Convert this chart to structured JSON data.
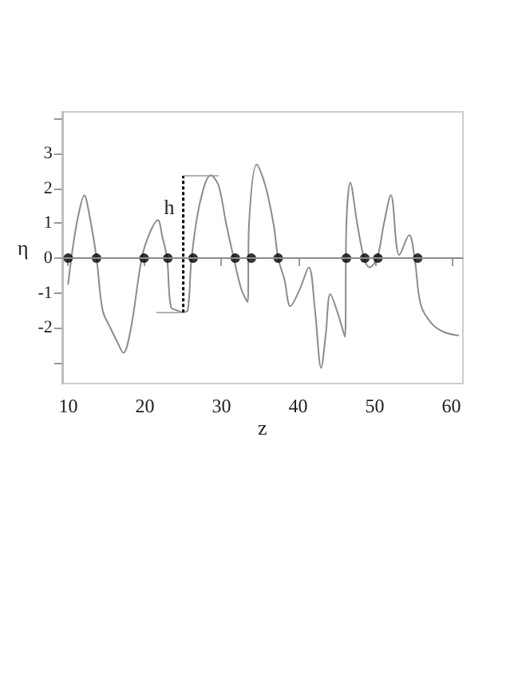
{
  "chart_data": {
    "type": "line",
    "xlabel": "z",
    "ylabel": "η",
    "xlim": [
      9.2,
      61.5
    ],
    "xticks": [
      10,
      20,
      30,
      40,
      50,
      60
    ],
    "ylim": [
      -3.6,
      4.2
    ],
    "yticks": [
      {
        "value": -3,
        "label": null
      },
      -2,
      -1,
      0,
      1,
      2,
      3,
      {
        "value": 4,
        "label": null
      }
    ],
    "grid": false,
    "series": [
      {
        "color": "#8c8c8c",
        "marker": "none",
        "x": [
          10,
          10.6,
          11.3,
          12.1,
          12.8,
          13.7,
          14.5,
          15.5,
          16.4,
          17.2,
          18.2,
          19.6,
          20.6,
          21.7,
          22.3,
          22.9,
          23.4,
          24.2,
          25,
          25.6,
          26.1,
          27.2,
          28.6,
          29.6,
          30.6,
          31.6,
          32.6,
          33.4,
          33.6,
          34.6,
          35.7,
          36.8,
          37.4,
          38.2,
          39,
          40.2,
          41.4,
          42.2,
          43,
          43.6,
          44.2,
          45.2,
          46.1,
          46.3,
          46.8,
          47.7,
          48.6,
          49.3,
          50.3,
          51.2,
          52.1,
          53.2,
          54.5,
          55.2,
          56,
          57.4,
          59,
          60.9
        ],
        "values": [
          -0.74,
          0.3,
          1.2,
          1.8,
          1.2,
          0,
          -1.5,
          -2,
          -2.4,
          -2.72,
          -2,
          0,
          0.7,
          1.09,
          0.6,
          0,
          -1.4,
          -1.5,
          -1.55,
          -1.5,
          0,
          1.6,
          2.38,
          2.1,
          1,
          0,
          -0.9,
          -1.26,
          1,
          2.69,
          2.1,
          0.97,
          0,
          -0.6,
          -1.38,
          -0.9,
          -0.26,
          -1.5,
          -3.15,
          -2.2,
          -1.03,
          -1.6,
          -2.26,
          1,
          2.17,
          1,
          0,
          -0.26,
          0,
          1,
          1.81,
          0.09,
          0.66,
          0,
          -1.34,
          -1.87,
          -2.12,
          -2.22
        ]
      },
      {
        "type": "scatter",
        "color": "#000000",
        "marker": "circle",
        "x": [
          10,
          13.7,
          19.9,
          23,
          26.3,
          31.8,
          33.9,
          37.4,
          46.3,
          48.7,
          50.4,
          55.6
        ],
        "values": [
          0,
          0,
          0,
          0,
          0,
          0,
          0,
          0,
          0,
          0,
          0,
          0
        ]
      }
    ],
    "ref_lines": [
      {
        "axis": "y",
        "value": 0,
        "color": "#8c8c8c"
      }
    ],
    "annotations": [
      {
        "text": "h",
        "x": 25,
        "y": -1.55
      }
    ]
  }
}
